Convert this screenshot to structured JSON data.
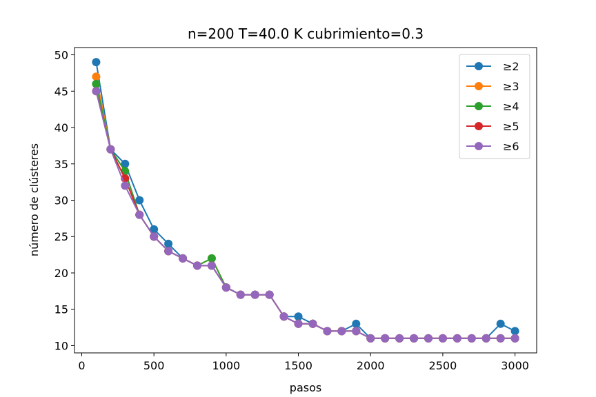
{
  "chart_data": {
    "type": "line",
    "title": "n=200 T=40.0 K cubrimiento=0.3",
    "xlabel": "pasos",
    "ylabel": "número de clústeres",
    "xlim": [
      -50,
      3150
    ],
    "ylim": [
      9.0,
      51.0
    ],
    "xticks": [
      0,
      500,
      1000,
      1500,
      2000,
      2500,
      3000
    ],
    "yticks": [
      10,
      15,
      20,
      25,
      30,
      35,
      40,
      45,
      50
    ],
    "grid": false,
    "legend_position": "top-right",
    "x": [
      100,
      200,
      300,
      400,
      500,
      600,
      700,
      800,
      900,
      1000,
      1100,
      1200,
      1300,
      1400,
      1500,
      1600,
      1700,
      1800,
      1900,
      2000,
      2100,
      2200,
      2300,
      2400,
      2500,
      2600,
      2700,
      2800,
      2900,
      3000
    ],
    "series": [
      {
        "name": "≥2",
        "color": "#1f77b4",
        "values": [
          49,
          37,
          35,
          30,
          26,
          24,
          22,
          21,
          21,
          18,
          17,
          17,
          17,
          14,
          14,
          13,
          12,
          12,
          13,
          11,
          11,
          11,
          11,
          11,
          11,
          11,
          11,
          11,
          13,
          12
        ]
      },
      {
        "name": "≥3",
        "color": "#ff7f0e",
        "values": [
          47,
          37,
          33,
          28,
          25,
          23,
          22,
          21,
          22,
          18,
          17,
          17,
          17,
          14,
          13,
          13,
          12,
          12,
          12,
          11,
          11,
          11,
          11,
          11,
          11,
          11,
          11,
          11,
          11,
          11
        ]
      },
      {
        "name": "≥4",
        "color": "#2ca02c",
        "values": [
          46,
          37,
          34,
          28,
          25,
          23,
          22,
          21,
          22,
          18,
          17,
          17,
          17,
          14,
          13,
          13,
          12,
          12,
          12,
          11,
          11,
          11,
          11,
          11,
          11,
          11,
          11,
          11,
          11,
          11
        ]
      },
      {
        "name": "≥5",
        "color": "#d62728",
        "values": [
          45,
          37,
          33,
          28,
          25,
          23,
          22,
          21,
          21,
          18,
          17,
          17,
          17,
          14,
          13,
          13,
          12,
          12,
          12,
          11,
          11,
          11,
          11,
          11,
          11,
          11,
          11,
          11,
          11,
          11
        ]
      },
      {
        "name": "≥6",
        "color": "#9467bd",
        "values": [
          45,
          37,
          32,
          28,
          25,
          23,
          22,
          21,
          21,
          18,
          17,
          17,
          17,
          14,
          13,
          13,
          12,
          12,
          12,
          11,
          11,
          11,
          11,
          11,
          11,
          11,
          11,
          11,
          11,
          11
        ]
      }
    ]
  }
}
